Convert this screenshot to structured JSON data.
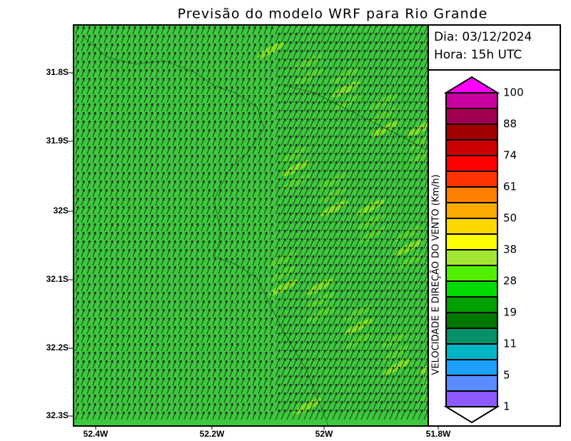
{
  "header": {
    "title": "Previsão do modelo WRF para Rio Grande"
  },
  "info": {
    "day": "Dia: 03/12/2024",
    "hour": "Hora: 15h UTC"
  },
  "axes": {
    "y_labels": [
      "31.8S",
      "31.9S",
      "32S",
      "32.1S",
      "32.2S",
      "32.3S"
    ],
    "x_labels": [
      "52.4W",
      "52.2W",
      "52W",
      "51.8W"
    ]
  },
  "colorbar": {
    "label": "VELOCIDADE E DIREÇÃO DO VENTO (Km/h)",
    "ticks": [
      "100",
      "88",
      "74",
      "61",
      "50",
      "38",
      "28",
      "19",
      "11",
      "5",
      "1"
    ]
  }
}
